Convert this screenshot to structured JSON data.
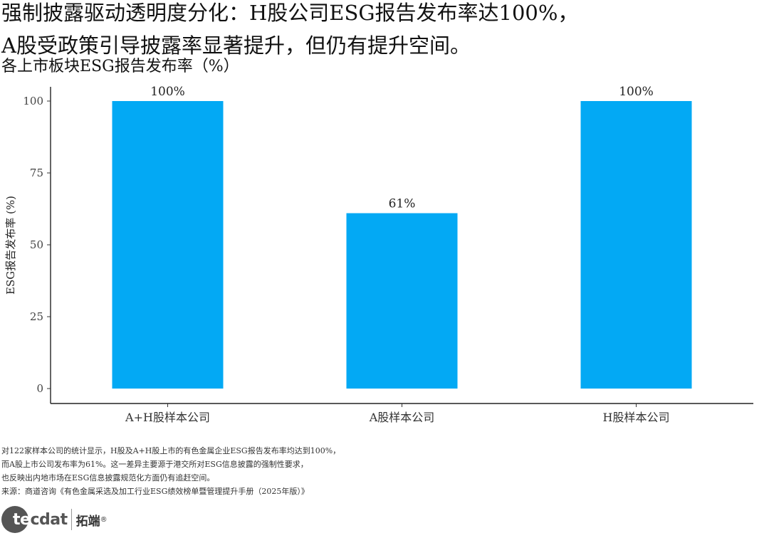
{
  "header": {
    "title_line1": "强制披露驱动透明度分化：H股公司ESG报告发布率达100%，",
    "title_line2": "A股受政策引导披露率显著提升，但仍有提升空间。",
    "subtitle": "各上市板块ESG报告发布率（%）"
  },
  "chart_data": {
    "type": "bar",
    "categories": [
      "A+H股样本公司",
      "A股样本公司",
      "H股样本公司"
    ],
    "values": [
      100,
      61,
      100
    ],
    "data_labels": [
      "100%",
      "61%",
      "100%"
    ],
    "xlabel": "",
    "ylabel": "ESG报告发布率 (%)",
    "ylim": [
      0,
      100
    ],
    "yticks": [
      "0",
      "25",
      "50",
      "75",
      "100"
    ],
    "bar_color": "#03A9F4",
    "grid": false
  },
  "footnotes": [
    "对122家样本公司的统计显示，H股及A+H股上市的有色金属企业ESG报告发布率均达到100%，",
    "而A股上市公司发布率为61%。这一差异主要源于港交所对ESG信息披露的强制性要求，",
    "也反映出内地市场在ESG信息披露规范化方面仍有追赶空间。",
    "来源：商道咨询《有色金属采选及加工行业ESG绩效榜单暨管理提升手册（2025年版）》"
  ],
  "logo": {
    "brand_first": "te",
    "brand_rest": "cdat",
    "brand_cn": "拓端",
    "reg_mark": "®"
  }
}
